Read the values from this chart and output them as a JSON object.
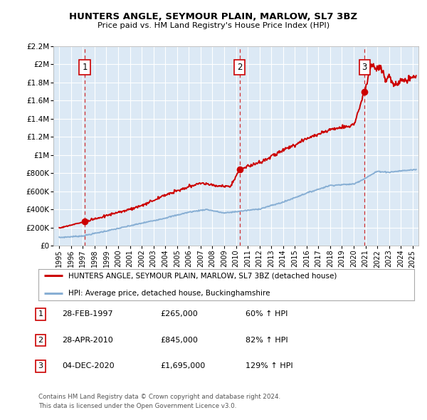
{
  "title": "HUNTERS ANGLE, SEYMOUR PLAIN, MARLOW, SL7 3BZ",
  "subtitle": "Price paid vs. HM Land Registry's House Price Index (HPI)",
  "bg_color": "#dce9f5",
  "plot_bg_color": "#dce9f5",
  "red_color": "#cc0000",
  "blue_color": "#88afd4",
  "sale_points": [
    {
      "year": 1997.16,
      "price": 265000,
      "label": "1"
    },
    {
      "year": 2010.33,
      "price": 845000,
      "label": "2"
    },
    {
      "year": 2020.92,
      "price": 1695000,
      "label": "3"
    }
  ],
  "legend_entries": [
    "HUNTERS ANGLE, SEYMOUR PLAIN, MARLOW, SL7 3BZ (detached house)",
    "HPI: Average price, detached house, Buckinghamshire"
  ],
  "table_rows": [
    {
      "num": "1",
      "date": "28-FEB-1997",
      "price": "£265,000",
      "hpi": "60% ↑ HPI"
    },
    {
      "num": "2",
      "date": "28-APR-2010",
      "price": "£845,000",
      "hpi": "82% ↑ HPI"
    },
    {
      "num": "3",
      "date": "04-DEC-2020",
      "price": "£1,695,000",
      "hpi": "129% ↑ HPI"
    }
  ],
  "footer": "Contains HM Land Registry data © Crown copyright and database right 2024.\nThis data is licensed under the Open Government Licence v3.0.",
  "ylim": [
    0,
    2200000
  ],
  "yticks": [
    0,
    200000,
    400000,
    600000,
    800000,
    1000000,
    1200000,
    1400000,
    1600000,
    1800000,
    2000000,
    2200000
  ],
  "ytick_labels": [
    "£0",
    "£200K",
    "£400K",
    "£600K",
    "£800K",
    "£1M",
    "£1.2M",
    "£1.4M",
    "£1.6M",
    "£1.8M",
    "£2M",
    "£2.2M"
  ],
  "xlim": [
    1994.5,
    2025.5
  ],
  "xticks": [
    1995,
    1996,
    1997,
    1998,
    1999,
    2000,
    2001,
    2002,
    2003,
    2004,
    2005,
    2006,
    2007,
    2008,
    2009,
    2010,
    2011,
    2012,
    2013,
    2014,
    2015,
    2016,
    2017,
    2018,
    2019,
    2020,
    2021,
    2022,
    2023,
    2024,
    2025
  ],
  "fig_width": 6.0,
  "fig_height": 5.9,
  "dpi": 100
}
